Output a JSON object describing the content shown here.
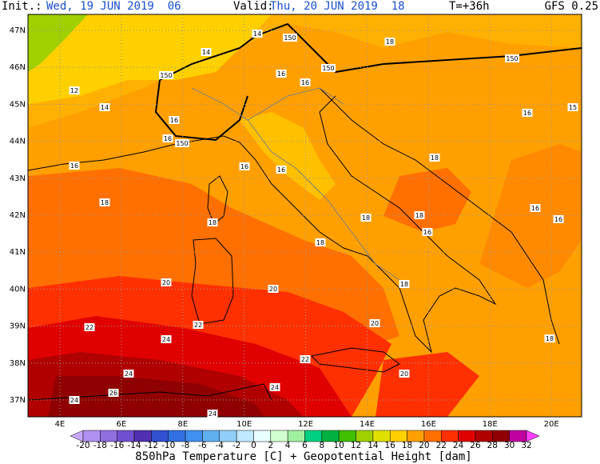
{
  "header": {
    "init_label": "Init.:",
    "init_time": "Wed, 19 JUN 2019  06",
    "valid_label": "Valid:",
    "valid_time": "Thu, 20 JUN 2019  18",
    "lead": "T=+36h",
    "model": "GFS 0.25"
  },
  "map": {
    "lon_labels": [
      "4E",
      "6E",
      "8E",
      "10E",
      "12E",
      "14E",
      "16E",
      "18E",
      "20E"
    ],
    "lat_labels": [
      "47N",
      "46N",
      "45N",
      "44N",
      "43N",
      "42N",
      "41N",
      "40N",
      "39N",
      "38N",
      "37N"
    ],
    "contour_labels": [
      "14",
      "150",
      "18",
      "14",
      "150",
      "16",
      "16",
      "150",
      "150",
      "12",
      "14",
      "16",
      "16",
      "150",
      "16",
      "15",
      "16",
      "16",
      "16",
      "18",
      "18",
      "16",
      "16",
      "18",
      "18",
      "18",
      "16",
      "18",
      "20",
      "20",
      "18",
      "22",
      "22",
      "20",
      "24",
      "18",
      "22",
      "24",
      "20",
      "24",
      "26",
      "24",
      "24"
    ]
  },
  "colorbar": {
    "ticks": [
      -20,
      -18,
      -16,
      -14,
      -12,
      -10,
      -8,
      -6,
      -4,
      -2,
      0,
      2,
      4,
      6,
      8,
      10,
      12,
      14,
      16,
      18,
      20,
      22,
      24,
      26,
      28,
      30,
      32
    ],
    "colors": [
      "#c8a8ff",
      "#b090f0",
      "#9070e0",
      "#7050d0",
      "#5030b0",
      "#3050d0",
      "#3070e0",
      "#4090f0",
      "#60b0f0",
      "#90d0f8",
      "#c0e8ff",
      "#e8ffff",
      "#d0ffd0",
      "#a0f0a0",
      "#00d080",
      "#00b040",
      "#40c000",
      "#a0d000",
      "#e0e000",
      "#ffd000",
      "#ffa000",
      "#ff7000",
      "#ff3000",
      "#e00000",
      "#b00000",
      "#900000",
      "#c000a0",
      "#ff40ff"
    ],
    "title": "850hPa Temperature [C] + Geopotential Height [dam]"
  }
}
